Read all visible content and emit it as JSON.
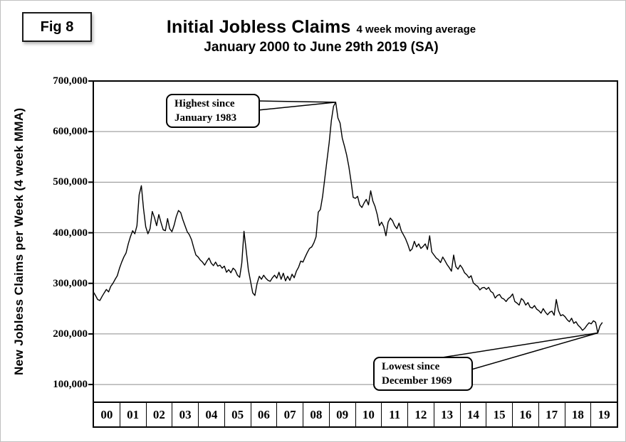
{
  "figure": {
    "fig_label": "Fig 8"
  },
  "title": {
    "main": "Initial Jobless Claims",
    "suffix": "4 week moving average",
    "subtitle": "January 2000 to June 29th 2019 (SA)"
  },
  "chart_data": {
    "type": "line",
    "title": "Initial Jobless Claims, 4 week moving average, January 2000 to June 29th 2019 (SA)",
    "xlabel": "",
    "ylabel": "New Jobless Claims per Week (4 week MMA)",
    "grid": "horizontal",
    "line_color": "#000000",
    "background_color": "#ffffff",
    "x_axis": {
      "unit": "year",
      "start": 2000,
      "end": 2020,
      "categories": [
        "00",
        "01",
        "02",
        "03",
        "04",
        "05",
        "06",
        "07",
        "08",
        "09",
        "10",
        "11",
        "12",
        "13",
        "14",
        "15",
        "16",
        "17",
        "18",
        "19"
      ]
    },
    "y_axis": {
      "ticks": [
        700000,
        600000,
        500000,
        400000,
        300000,
        200000,
        100000
      ],
      "tick_labels": [
        "700,000",
        "600,000",
        "500,000",
        "400,000",
        "300,000",
        "200,000",
        "100,000"
      ],
      "range_shown": [
        65000,
        700000
      ]
    },
    "series": [
      {
        "name": "Initial jobless claims, 4-week moving average (SA)",
        "start_year": 2000,
        "points_per_year": 12,
        "sampling": "monthly estimates read from chart",
        "values": [
          283000,
          276000,
          268000,
          266000,
          274000,
          281000,
          288000,
          283000,
          294000,
          300000,
          308000,
          315000,
          330000,
          342000,
          352000,
          360000,
          378000,
          392000,
          404000,
          398000,
          414000,
          475000,
          493000,
          448000,
          412000,
          398000,
          408000,
          442000,
          430000,
          414000,
          436000,
          420000,
          406000,
          404000,
          428000,
          408000,
          402000,
          415000,
          432000,
          444000,
          440000,
          426000,
          414000,
          402000,
          396000,
          386000,
          370000,
          356000,
          352000,
          346000,
          342000,
          336000,
          344000,
          350000,
          340000,
          335000,
          342000,
          334000,
          336000,
          330000,
          334000,
          322000,
          327000,
          321000,
          330000,
          326000,
          316000,
          312000,
          340000,
          403000,
          365000,
          327000,
          304000,
          281000,
          276000,
          300000,
          314000,
          308000,
          316000,
          310000,
          306000,
          304000,
          311000,
          316000,
          310000,
          322000,
          308000,
          320000,
          305000,
          314000,
          306000,
          318000,
          311000,
          324000,
          332000,
          344000,
          342000,
          352000,
          361000,
          369000,
          372000,
          380000,
          392000,
          441000,
          446000,
          472000,
          508000,
          543000,
          578000,
          622000,
          650000,
          658000,
          627000,
          617000,
          587000,
          571000,
          554000,
          531000,
          502000,
          470000,
          468000,
          472000,
          455000,
          450000,
          459000,
          466000,
          455000,
          483000,
          463000,
          452000,
          436000,
          414000,
          421000,
          412000,
          394000,
          421000,
          429000,
          424000,
          414000,
          408000,
          419000,
          404000,
          396000,
          388000,
          377000,
          364000,
          368000,
          383000,
          372000,
          378000,
          369000,
          373000,
          378000,
          367000,
          394000,
          362000,
          356000,
          350000,
          347000,
          341000,
          352000,
          345000,
          337000,
          331000,
          324000,
          356000,
          333000,
          328000,
          336000,
          330000,
          321000,
          317000,
          311000,
          315000,
          301000,
          297000,
          294000,
          287000,
          291000,
          292000,
          288000,
          292000,
          284000,
          281000,
          271000,
          276000,
          278000,
          271000,
          269000,
          264000,
          270000,
          273000,
          279000,
          264000,
          261000,
          257000,
          270000,
          266000,
          257000,
          262000,
          253000,
          251000,
          256000,
          249000,
          246000,
          241000,
          250000,
          243000,
          238000,
          243000,
          245000,
          237000,
          268000,
          246000,
          236000,
          238000,
          234000,
          228000,
          224000,
          231000,
          221000,
          224000,
          217000,
          213000,
          207000,
          211000,
          217000,
          222000,
          220000,
          226000,
          223000,
          202000,
          216000,
          222000
        ]
      }
    ],
    "annotations": [
      {
        "id": "highest",
        "lines": [
          "Highest since",
          "January 1983"
        ],
        "target": {
          "year": 2009.25,
          "value": 658000
        }
      },
      {
        "id": "lowest",
        "lines": [
          "Lowest since",
          "December 1969"
        ],
        "target": {
          "year": 2019.25,
          "value": 202000
        }
      }
    ]
  }
}
